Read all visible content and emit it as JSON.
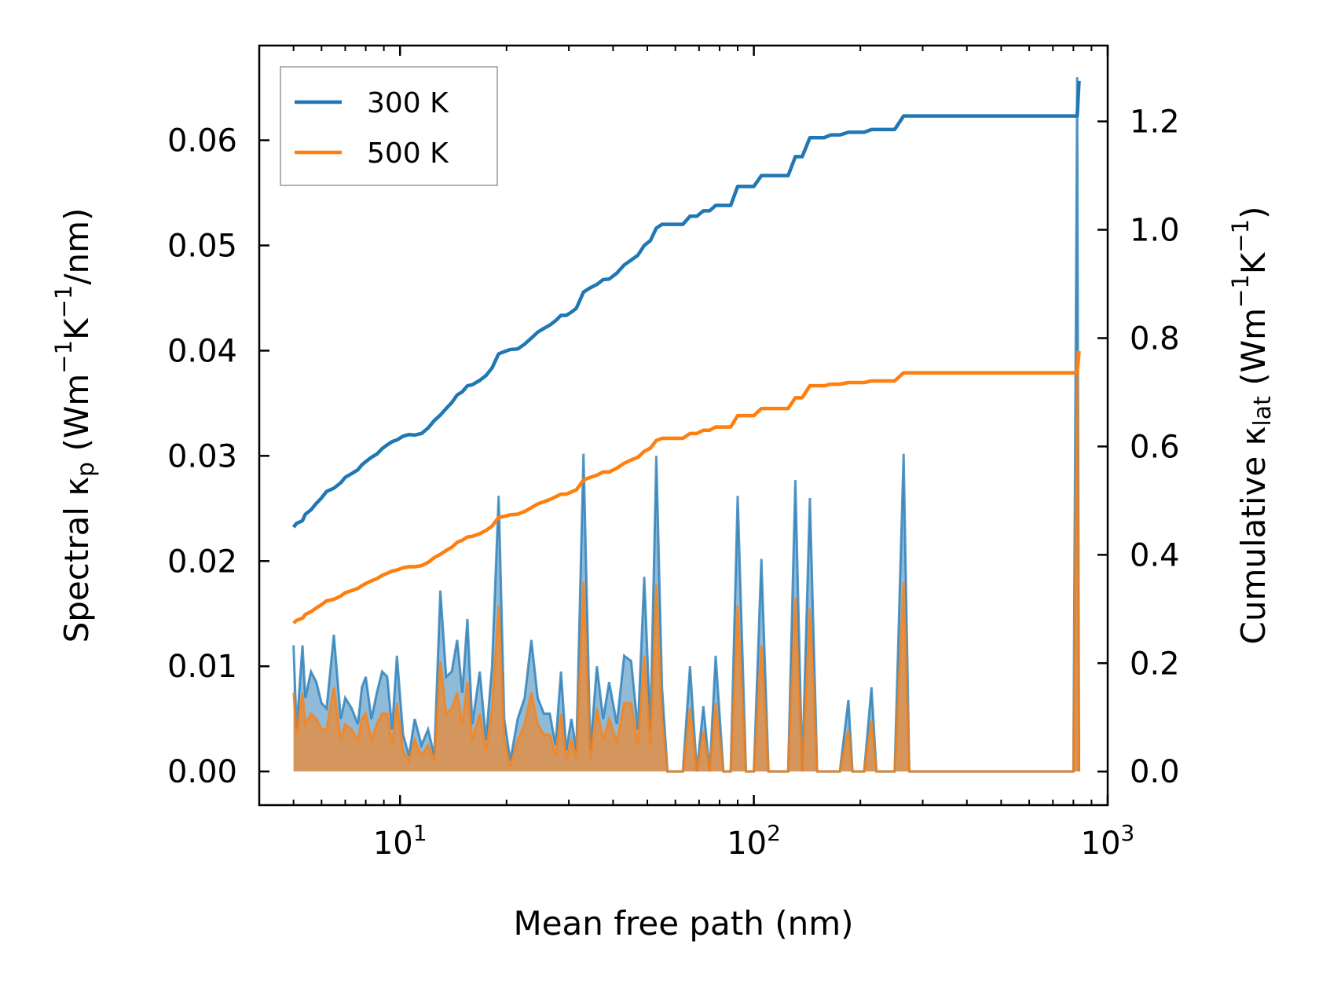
{
  "chart_data": {
    "type": "line",
    "title": "",
    "xlabel": "Mean free path (nm)",
    "xscale": "log",
    "xlim": [
      4.0,
      1000
    ],
    "x_ticks": [
      {
        "value": 10,
        "base": "10",
        "exp": "1"
      },
      {
        "value": 100,
        "base": "10",
        "exp": "2"
      },
      {
        "value": 1000,
        "base": "10",
        "exp": "3"
      }
    ],
    "y_left": {
      "label_main": "Spectral κ",
      "label_sub": "p",
      "label_units": " (Wm",
      "label_units_sup1": "−1",
      "label_units_mid": "K",
      "label_units_sup2": "−1",
      "label_units_end": "/nm)",
      "ylim": [
        -0.0032,
        0.069
      ],
      "ticks": [
        "0.00",
        "0.01",
        "0.02",
        "0.03",
        "0.04",
        "0.05",
        "0.06"
      ],
      "tick_values": [
        0,
        0.01,
        0.02,
        0.03,
        0.04,
        0.05,
        0.06
      ]
    },
    "y_right": {
      "label_main": "Cumulative κ",
      "label_sub": "lat",
      "label_units": " (Wm",
      "label_units_sup1": "−1",
      "label_units_mid": "K",
      "label_units_sup2": "−1",
      "label_units_end": ")",
      "ylim": [
        -0.062,
        1.34
      ],
      "ticks": [
        "0.0",
        "0.2",
        "0.4",
        "0.6",
        "0.8",
        "1.0",
        "1.2"
      ],
      "tick_values": [
        0,
        0.2,
        0.4,
        0.6,
        0.8,
        1.0,
        1.2
      ]
    },
    "legend": {
      "placement": "top-left",
      "entries": [
        {
          "label": "300 K",
          "color": "#1f77b4"
        },
        {
          "label": "500 K",
          "color": "#ff7f0e"
        }
      ]
    },
    "spectral_x": [
      5.0,
      5.1,
      5.3,
      5.4,
      5.6,
      5.8,
      6.0,
      6.2,
      6.5,
      6.8,
      7.0,
      7.3,
      7.6,
      7.8,
      8.0,
      8.3,
      8.6,
      8.9,
      9.2,
      9.5,
      9.8,
      10.2,
      10.6,
      11.0,
      11.5,
      12.0,
      12.5,
      13.0,
      13.5,
      14.0,
      14.5,
      15.0,
      15.5,
      16.0,
      16.8,
      17.5,
      18.2,
      19.0,
      19.7,
      20.5,
      21.5,
      22.5,
      23.5,
      24.5,
      25.5,
      26.5,
      27.5,
      28.5,
      29.5,
      30.5,
      31.5,
      33.0,
      34.5,
      36.0,
      37.5,
      39.0,
      41.0,
      43.0,
      45.0,
      47.0,
      49.0,
      51.0,
      53.0,
      55.0,
      57.0,
      60.0,
      63.0,
      66.0,
      69.0,
      72.0,
      75.0,
      78.0,
      82.0,
      86.0,
      90.0,
      95.0,
      100.0,
      105.0,
      110.0,
      115.0,
      125.0,
      131.0,
      137.0,
      144.0,
      151.0,
      158.0,
      165.0,
      175.0,
      185.0,
      190.0,
      205.0,
      215.0,
      222.0,
      230.0,
      250.0,
      265.0,
      275.0,
      285.0,
      300.0,
      780.0,
      800.0,
      820.0,
      830.0
    ],
    "series": [
      {
        "name": "300 K",
        "color": "#1f77b4",
        "spectral": [
          0.012,
          0.004,
          0.012,
          0.007,
          0.0095,
          0.0085,
          0.0065,
          0.006,
          0.013,
          0.005,
          0.007,
          0.006,
          0.0045,
          0.008,
          0.009,
          0.005,
          0.0075,
          0.0095,
          0.009,
          0.004,
          0.011,
          0.0035,
          0.0015,
          0.005,
          0.0025,
          0.004,
          0.0015,
          0.0172,
          0.009,
          0.0095,
          0.0125,
          0.0075,
          0.0145,
          0.0045,
          0.0095,
          0.003,
          0.01,
          0.0262,
          0.005,
          0.001,
          0.005,
          0.007,
          0.0125,
          0.007,
          0.0055,
          0.0055,
          0.0025,
          0.0095,
          0.002,
          0.005,
          0.002,
          0.0302,
          0.002,
          0.01,
          0.005,
          0.0085,
          0.0045,
          0.011,
          0.0105,
          0.004,
          0.0185,
          0.004,
          0.03,
          0.008,
          0.0,
          0.0,
          0.0,
          0.01,
          0.0,
          0.0062,
          0.0,
          0.011,
          0.0,
          0.0,
          0.0262,
          0.0,
          0.0,
          0.0202,
          0.0,
          0.0,
          0.0,
          0.0277,
          0.0,
          0.026,
          0.0,
          0.0,
          0.0,
          0.0,
          0.0068,
          0.0,
          0.0,
          0.008,
          0.0,
          0.0,
          0.0,
          0.0302,
          0.0,
          0.0,
          0.0,
          0.0,
          0.0,
          0.066,
          0.0
        ],
        "cumulative": [
          0.451,
          0.458,
          0.463,
          0.475,
          0.483,
          0.495,
          0.505,
          0.517,
          0.523,
          0.533,
          0.543,
          0.55,
          0.557,
          0.566,
          0.572,
          0.58,
          0.586,
          0.596,
          0.603,
          0.609,
          0.612,
          0.619,
          0.622,
          0.621,
          0.624,
          0.634,
          0.648,
          0.658,
          0.67,
          0.681,
          0.695,
          0.701,
          0.712,
          0.714,
          0.722,
          0.731,
          0.745,
          0.771,
          0.775,
          0.779,
          0.78,
          0.789,
          0.8,
          0.811,
          0.818,
          0.824,
          0.832,
          0.842,
          0.842,
          0.848,
          0.855,
          0.885,
          0.893,
          0.899,
          0.908,
          0.909,
          0.92,
          0.935,
          0.944,
          0.953,
          0.971,
          0.98,
          1.003,
          1.01,
          1.01,
          1.01,
          1.01,
          1.025,
          1.025,
          1.035,
          1.035,
          1.045,
          1.045,
          1.045,
          1.08,
          1.08,
          1.08,
          1.1,
          1.1,
          1.1,
          1.1,
          1.135,
          1.135,
          1.17,
          1.17,
          1.17,
          1.175,
          1.175,
          1.18,
          1.18,
          1.18,
          1.185,
          1.185,
          1.185,
          1.185,
          1.21,
          1.21,
          1.21,
          1.21,
          1.21,
          1.21,
          1.21,
          1.275
        ]
      },
      {
        "name": "500 K",
        "color": "#ff7f0e",
        "spectral": [
          0.0075,
          0.0035,
          0.0075,
          0.0045,
          0.0055,
          0.005,
          0.004,
          0.004,
          0.008,
          0.003,
          0.0045,
          0.004,
          0.003,
          0.005,
          0.0055,
          0.003,
          0.0045,
          0.0055,
          0.0055,
          0.0025,
          0.0065,
          0.002,
          0.001,
          0.003,
          0.0015,
          0.0025,
          0.001,
          0.0105,
          0.0055,
          0.006,
          0.0075,
          0.0045,
          0.0085,
          0.003,
          0.0055,
          0.002,
          0.006,
          0.0158,
          0.003,
          0.0005,
          0.003,
          0.0045,
          0.0075,
          0.0045,
          0.0035,
          0.0035,
          0.0015,
          0.0055,
          0.0012,
          0.003,
          0.0012,
          0.018,
          0.0012,
          0.006,
          0.003,
          0.005,
          0.0028,
          0.0065,
          0.0065,
          0.0025,
          0.011,
          0.0025,
          0.0178,
          0.005,
          0.0,
          0.0,
          0.0,
          0.006,
          0.0,
          0.0038,
          0.0,
          0.0065,
          0.0,
          0.0,
          0.0158,
          0.0,
          0.0,
          0.012,
          0.0,
          0.0,
          0.0,
          0.0165,
          0.0,
          0.0155,
          0.0,
          0.0,
          0.0,
          0.0,
          0.004,
          0.0,
          0.0,
          0.0048,
          0.0,
          0.0,
          0.0,
          0.018,
          0.0,
          0.0,
          0.0,
          0.0,
          0.0,
          0.04,
          0.0
        ],
        "cumulative": [
          0.274,
          0.279,
          0.283,
          0.29,
          0.295,
          0.302,
          0.308,
          0.315,
          0.318,
          0.324,
          0.33,
          0.334,
          0.338,
          0.343,
          0.347,
          0.352,
          0.356,
          0.362,
          0.366,
          0.37,
          0.372,
          0.376,
          0.378,
          0.378,
          0.38,
          0.386,
          0.395,
          0.401,
          0.408,
          0.414,
          0.423,
          0.427,
          0.433,
          0.434,
          0.439,
          0.445,
          0.453,
          0.469,
          0.471,
          0.474,
          0.475,
          0.48,
          0.487,
          0.494,
          0.498,
          0.502,
          0.507,
          0.512,
          0.512,
          0.516,
          0.52,
          0.538,
          0.543,
          0.547,
          0.553,
          0.553,
          0.56,
          0.569,
          0.575,
          0.58,
          0.591,
          0.597,
          0.611,
          0.615,
          0.615,
          0.615,
          0.615,
          0.624,
          0.624,
          0.63,
          0.63,
          0.636,
          0.636,
          0.636,
          0.657,
          0.657,
          0.657,
          0.67,
          0.67,
          0.67,
          0.67,
          0.69,
          0.69,
          0.712,
          0.712,
          0.712,
          0.715,
          0.715,
          0.718,
          0.718,
          0.718,
          0.721,
          0.721,
          0.721,
          0.721,
          0.736,
          0.736,
          0.736,
          0.736,
          0.736,
          0.736,
          0.736,
          0.776
        ]
      }
    ]
  }
}
